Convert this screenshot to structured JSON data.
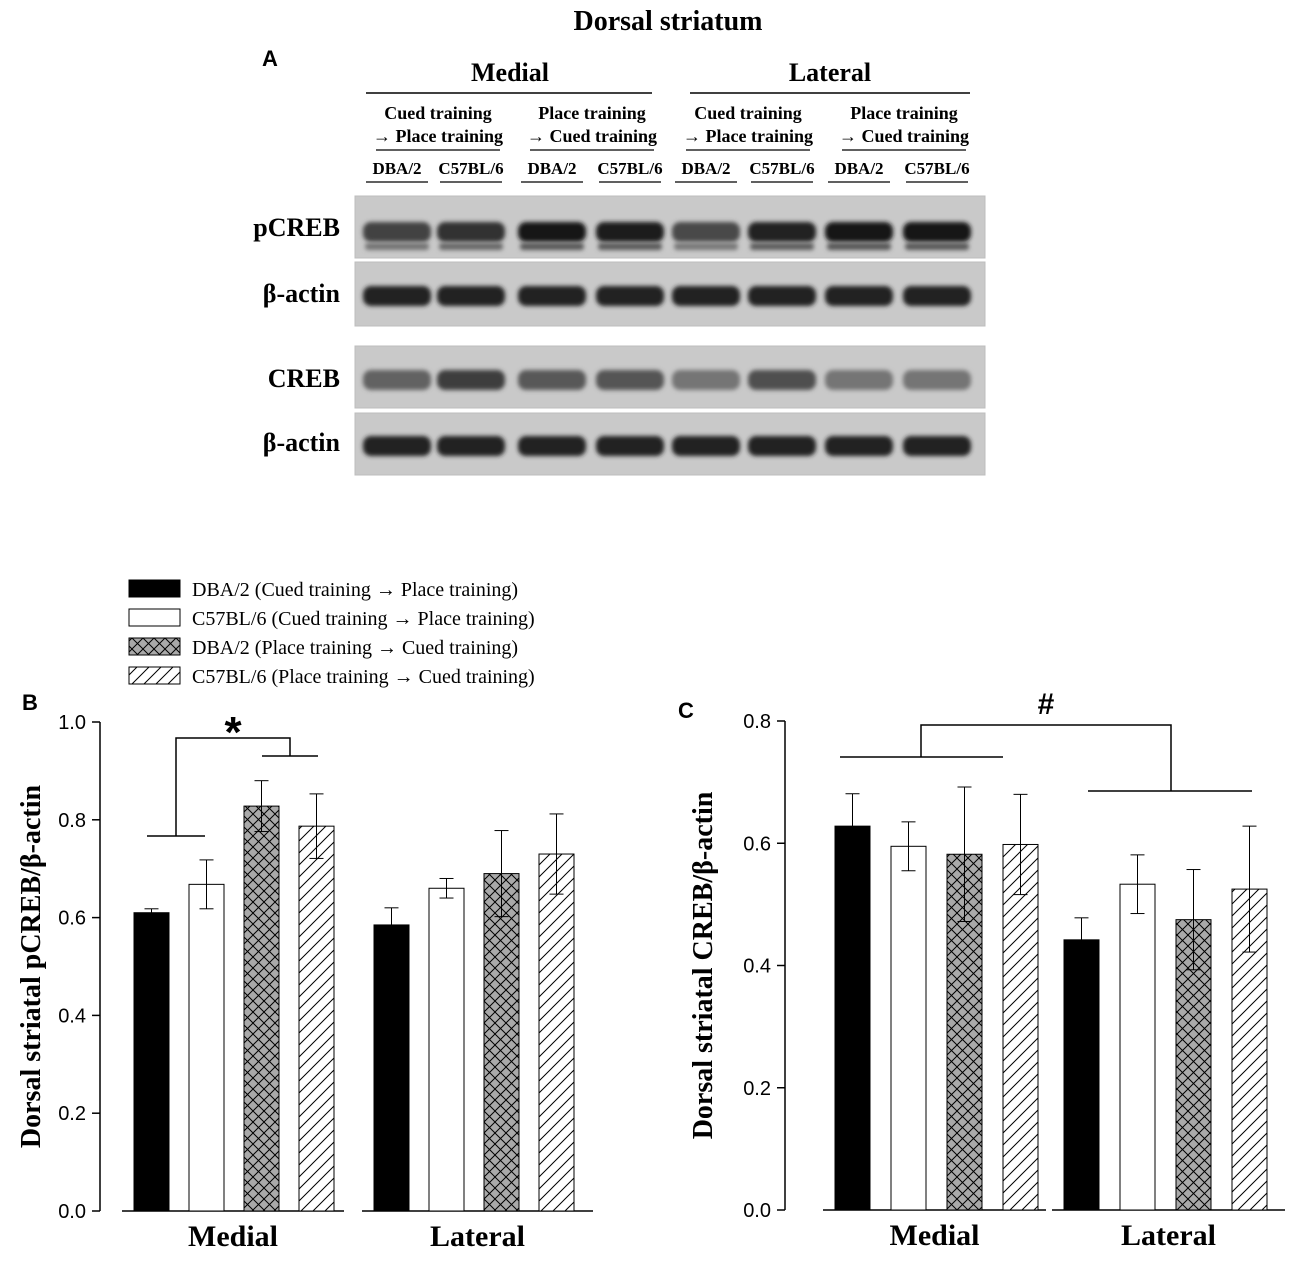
{
  "figure": {
    "title": "Dorsal striatum",
    "panel_a": {
      "label": "A",
      "regions": [
        "Medial",
        "Lateral"
      ],
      "conditions": [
        {
          "line1": "Cued training",
          "line2": "→ Place training"
        },
        {
          "line1": "Place training",
          "line2": "→ Cued training"
        },
        {
          "line1": "Cued training",
          "line2": "→ Place training"
        },
        {
          "line1": "Place training",
          "line2": "→ Cued training"
        }
      ],
      "lanes": [
        "DBA/2",
        "C57BL/6",
        "DBA/2",
        "C57BL/6",
        "DBA/2",
        "C57BL/6",
        "DBA/2",
        "C57BL/6"
      ],
      "blots": [
        {
          "label": "pCREB",
          "intensities": [
            0.72,
            0.82,
            0.95,
            0.93,
            0.68,
            0.9,
            0.97,
            0.95
          ]
        },
        {
          "label": "β-actin",
          "intensities": [
            0.9,
            0.9,
            0.9,
            0.9,
            0.9,
            0.9,
            0.9,
            0.9
          ]
        },
        {
          "label": "CREB",
          "intensities": [
            0.55,
            0.75,
            0.6,
            0.62,
            0.45,
            0.65,
            0.45,
            0.45
          ]
        },
        {
          "label": "β-actin",
          "intensities": [
            0.9,
            0.9,
            0.9,
            0.9,
            0.9,
            0.9,
            0.9,
            0.9
          ]
        }
      ]
    },
    "legend": [
      {
        "label": "DBA/2 (Cued training → Place training)",
        "pattern": "solid-black"
      },
      {
        "label": "C57BL/6 (Cued training → Place training)",
        "pattern": "white"
      },
      {
        "label": "DBA/2 (Place training → Cued training)",
        "pattern": "crosshatch-gray"
      },
      {
        "label": "C57BL/6 (Place training → Cued training)",
        "pattern": "diagonal"
      }
    ]
  },
  "chart_data": [
    {
      "panel": "B",
      "type": "bar",
      "ylabel": "Dorsal striatal pCREB/β-actin",
      "ylim": [
        0,
        1.0
      ],
      "yticks": [
        "0.0",
        "0.2",
        "0.4",
        "0.6",
        "0.8",
        "1.0"
      ],
      "categories": [
        "Medial",
        "Lateral"
      ],
      "series": [
        {
          "values": [
            0.61,
            0.585
          ],
          "errors": [
            0.008,
            0.035
          ]
        },
        {
          "values": [
            0.668,
            0.66
          ],
          "errors": [
            0.05,
            0.02
          ]
        },
        {
          "values": [
            0.828,
            0.69
          ],
          "errors": [
            0.052,
            0.088
          ]
        },
        {
          "values": [
            0.787,
            0.73
          ],
          "errors": [
            0.066,
            0.082
          ]
        }
      ],
      "annotation": {
        "symbol": "*"
      }
    },
    {
      "panel": "C",
      "type": "bar",
      "ylabel": "Dorsal striatal CREB/β-actin",
      "ylim": [
        0,
        0.8
      ],
      "yticks": [
        "0.0",
        "0.2",
        "0.4",
        "0.6",
        "0.8"
      ],
      "categories": [
        "Medial",
        "Lateral"
      ],
      "series": [
        {
          "values": [
            0.628,
            0.442
          ],
          "errors": [
            0.053,
            0.036
          ]
        },
        {
          "values": [
            0.595,
            0.533
          ],
          "errors": [
            0.04,
            0.048
          ]
        },
        {
          "values": [
            0.582,
            0.475
          ],
          "errors": [
            0.11,
            0.082
          ]
        },
        {
          "values": [
            0.598,
            0.525
          ],
          "errors": [
            0.082,
            0.103
          ]
        }
      ],
      "annotation": {
        "symbol": "#"
      }
    }
  ]
}
